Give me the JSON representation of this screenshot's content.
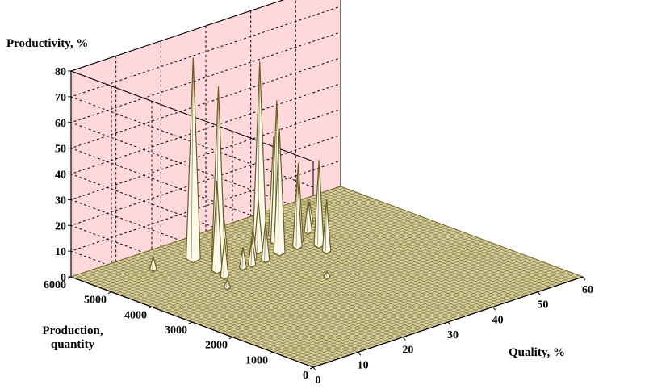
{
  "chart_data": {
    "type": "surface3d",
    "title": "",
    "zlabel": "Productivity, %",
    "ylabel_lines": [
      "Production,",
      "quantity"
    ],
    "xlabel": "Quality, %",
    "x_ticks": [
      0,
      10,
      20,
      30,
      40,
      50,
      60
    ],
    "y_ticks": [
      0,
      1000,
      2000,
      3000,
      4000,
      5000,
      6000
    ],
    "z_ticks": [
      0,
      10,
      20,
      30,
      40,
      50,
      60,
      70,
      80
    ],
    "xlim": [
      0,
      60
    ],
    "ylim": [
      0,
      6000
    ],
    "zlim": [
      0,
      80
    ],
    "grid": true,
    "colors": {
      "surface": "#d8d0a0",
      "surface_edge": "#6b5e1f",
      "back_walls": "#ffd8dc",
      "grid_lines": "#000000"
    },
    "peaks": [
      {
        "x": 20,
        "y": 5200,
        "z": 78
      },
      {
        "x": 22,
        "y": 4800,
        "z": 68
      },
      {
        "x": 19,
        "y": 4500,
        "z": 35
      },
      {
        "x": 18,
        "y": 4200,
        "z": 15
      },
      {
        "x": 25,
        "y": 5000,
        "z": 15
      },
      {
        "x": 33,
        "y": 5000,
        "z": 70
      },
      {
        "x": 35,
        "y": 4800,
        "z": 55
      },
      {
        "x": 32,
        "y": 4400,
        "z": 48
      },
      {
        "x": 37,
        "y": 5100,
        "z": 38
      },
      {
        "x": 39,
        "y": 4200,
        "z": 33
      },
      {
        "x": 38,
        "y": 4600,
        "z": 30
      },
      {
        "x": 36,
        "y": 4400,
        "z": 28
      },
      {
        "x": 30,
        "y": 4700,
        "z": 20
      },
      {
        "x": 28,
        "y": 4300,
        "z": 15
      },
      {
        "x": 27,
        "y": 4500,
        "z": 12
      },
      {
        "x": 25,
        "y": 4300,
        "z": 10
      },
      {
        "x": 42,
        "y": 4800,
        "z": 12
      },
      {
        "x": 38,
        "y": 3900,
        "z": 20
      },
      {
        "x": 23,
        "y": 4300,
        "z": 8
      },
      {
        "x": 45,
        "y": 5100,
        "z": 8
      },
      {
        "x": 12,
        "y": 5300,
        "z": 5
      },
      {
        "x": 15,
        "y": 3800,
        "z": 3
      },
      {
        "x": 30,
        "y": 3000,
        "z": 2
      }
    ]
  }
}
